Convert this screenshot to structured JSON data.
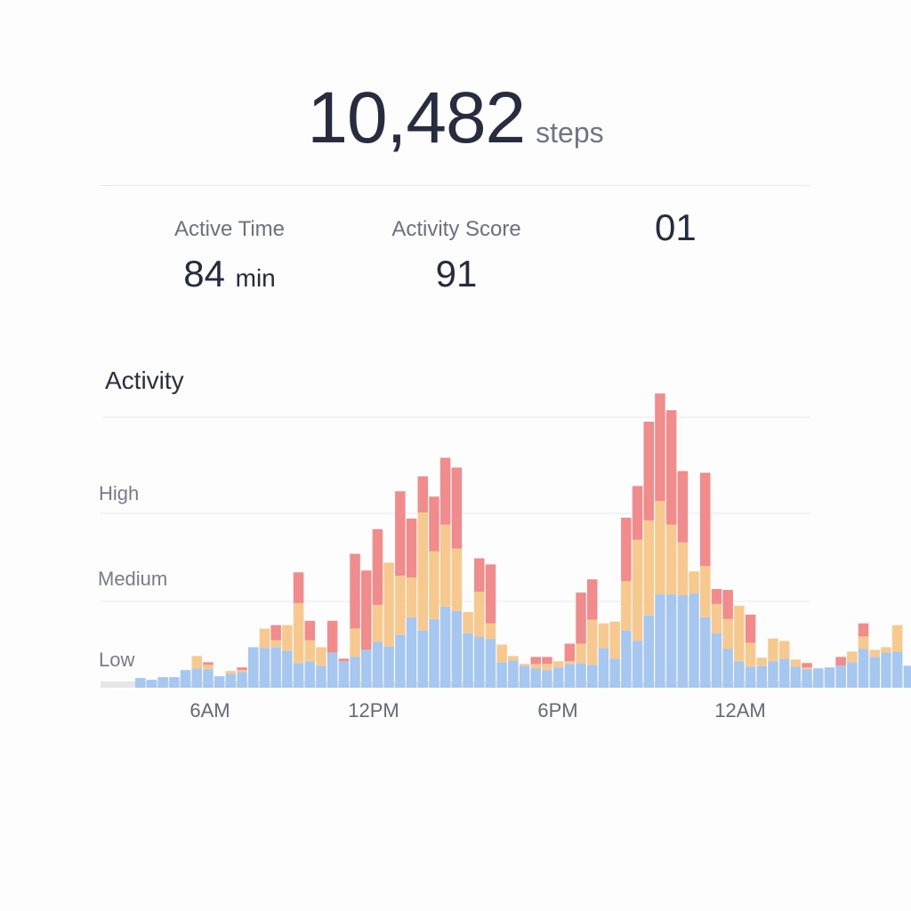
{
  "summary": {
    "steps_value": "10,482",
    "steps_unit": "steps",
    "active_time_label": "Active Time",
    "active_time_value": "84",
    "active_time_unit": "min",
    "activity_score_label": "Activity Score",
    "activity_score_value": "91",
    "extra_value": "01"
  },
  "section": {
    "title": "Activity"
  },
  "colors": {
    "low": "#a6c8f0",
    "medium": "#f8c98e",
    "high": "#f28b8b",
    "grid": "#e8e9ed",
    "baseline": "#e6e6e8"
  },
  "chart_data": {
    "type": "bar",
    "stacked": true,
    "title": "Activity",
    "ytick_labels": [
      "Low",
      "Medium",
      "High"
    ],
    "xtick_labels": [
      "6AM",
      "12PM",
      "6PM",
      "12AM"
    ],
    "series": [
      {
        "name": "Low",
        "values": [
          0.11,
          0.09,
          0.12,
          0.12,
          0.2,
          0.22,
          0.21,
          0.13,
          0.16,
          0.18,
          0.46,
          0.45,
          0.46,
          0.42,
          0.28,
          0.3,
          0.25,
          0.4,
          0.3,
          0.35,
          0.43,
          0.52,
          0.47,
          0.6,
          0.8,
          0.65,
          0.78,
          0.92,
          0.87,
          0.62,
          0.58,
          0.55,
          0.29,
          0.31,
          0.25,
          0.22,
          0.2,
          0.23,
          0.27,
          0.28,
          0.26,
          0.45,
          0.33,
          0.65,
          0.53,
          0.82,
          1.06,
          1.06,
          1.05,
          1.07,
          0.8,
          0.62,
          0.44,
          0.3,
          0.24,
          0.25,
          0.3,
          0.33,
          0.24,
          0.21,
          0.22,
          0.23,
          0.25,
          0.29,
          0.44,
          0.35,
          0.4,
          0.41,
          0.25,
          0.15,
          0.12
        ]
      },
      {
        "name": "Medium",
        "values": [
          0,
          0,
          0,
          0,
          0,
          0.14,
          0.05,
          0,
          0.03,
          0.02,
          0,
          0.22,
          0.08,
          0.29,
          0.68,
          0.24,
          0.21,
          0,
          0,
          0.32,
          0,
          0.42,
          0.95,
          0.67,
          0.45,
          1.34,
          0.77,
          0.93,
          0.71,
          0.24,
          0.51,
          0.18,
          0.2,
          0.05,
          0.02,
          0.05,
          0.07,
          0.07,
          0.03,
          0.22,
          0.51,
          0.28,
          0.42,
          0.56,
          1.15,
          1.08,
          1.06,
          0.79,
          0.6,
          0.25,
          0.58,
          0.33,
          0.34,
          0.63,
          0.27,
          0.09,
          0.26,
          0.2,
          0.08,
          0.02,
          0,
          0,
          0,
          0.12,
          0.14,
          0.08,
          0.06,
          0.3,
          0,
          0,
          0
        ]
      },
      {
        "name": "High",
        "values": [
          0,
          0,
          0,
          0,
          0,
          0,
          0.03,
          0,
          0,
          0.03,
          0,
          0,
          0.17,
          0,
          0.35,
          0.22,
          0,
          0.36,
          0.03,
          0.85,
          0.9,
          0.86,
          0,
          0.96,
          0.67,
          0.41,
          0.62,
          0.76,
          0.92,
          0,
          0.38,
          0.67,
          0,
          0,
          0,
          0.08,
          0.08,
          0,
          0.2,
          0.58,
          0.46,
          0,
          0,
          0.72,
          0.61,
          1.12,
          1.22,
          1.3,
          0.81,
          0,
          1.06,
          0.17,
          0.33,
          0,
          0.32,
          0,
          0,
          0,
          0,
          0.05,
          0,
          0,
          0.1,
          0,
          0.15,
          0,
          0,
          0,
          0,
          0,
          0
        ]
      }
    ]
  }
}
